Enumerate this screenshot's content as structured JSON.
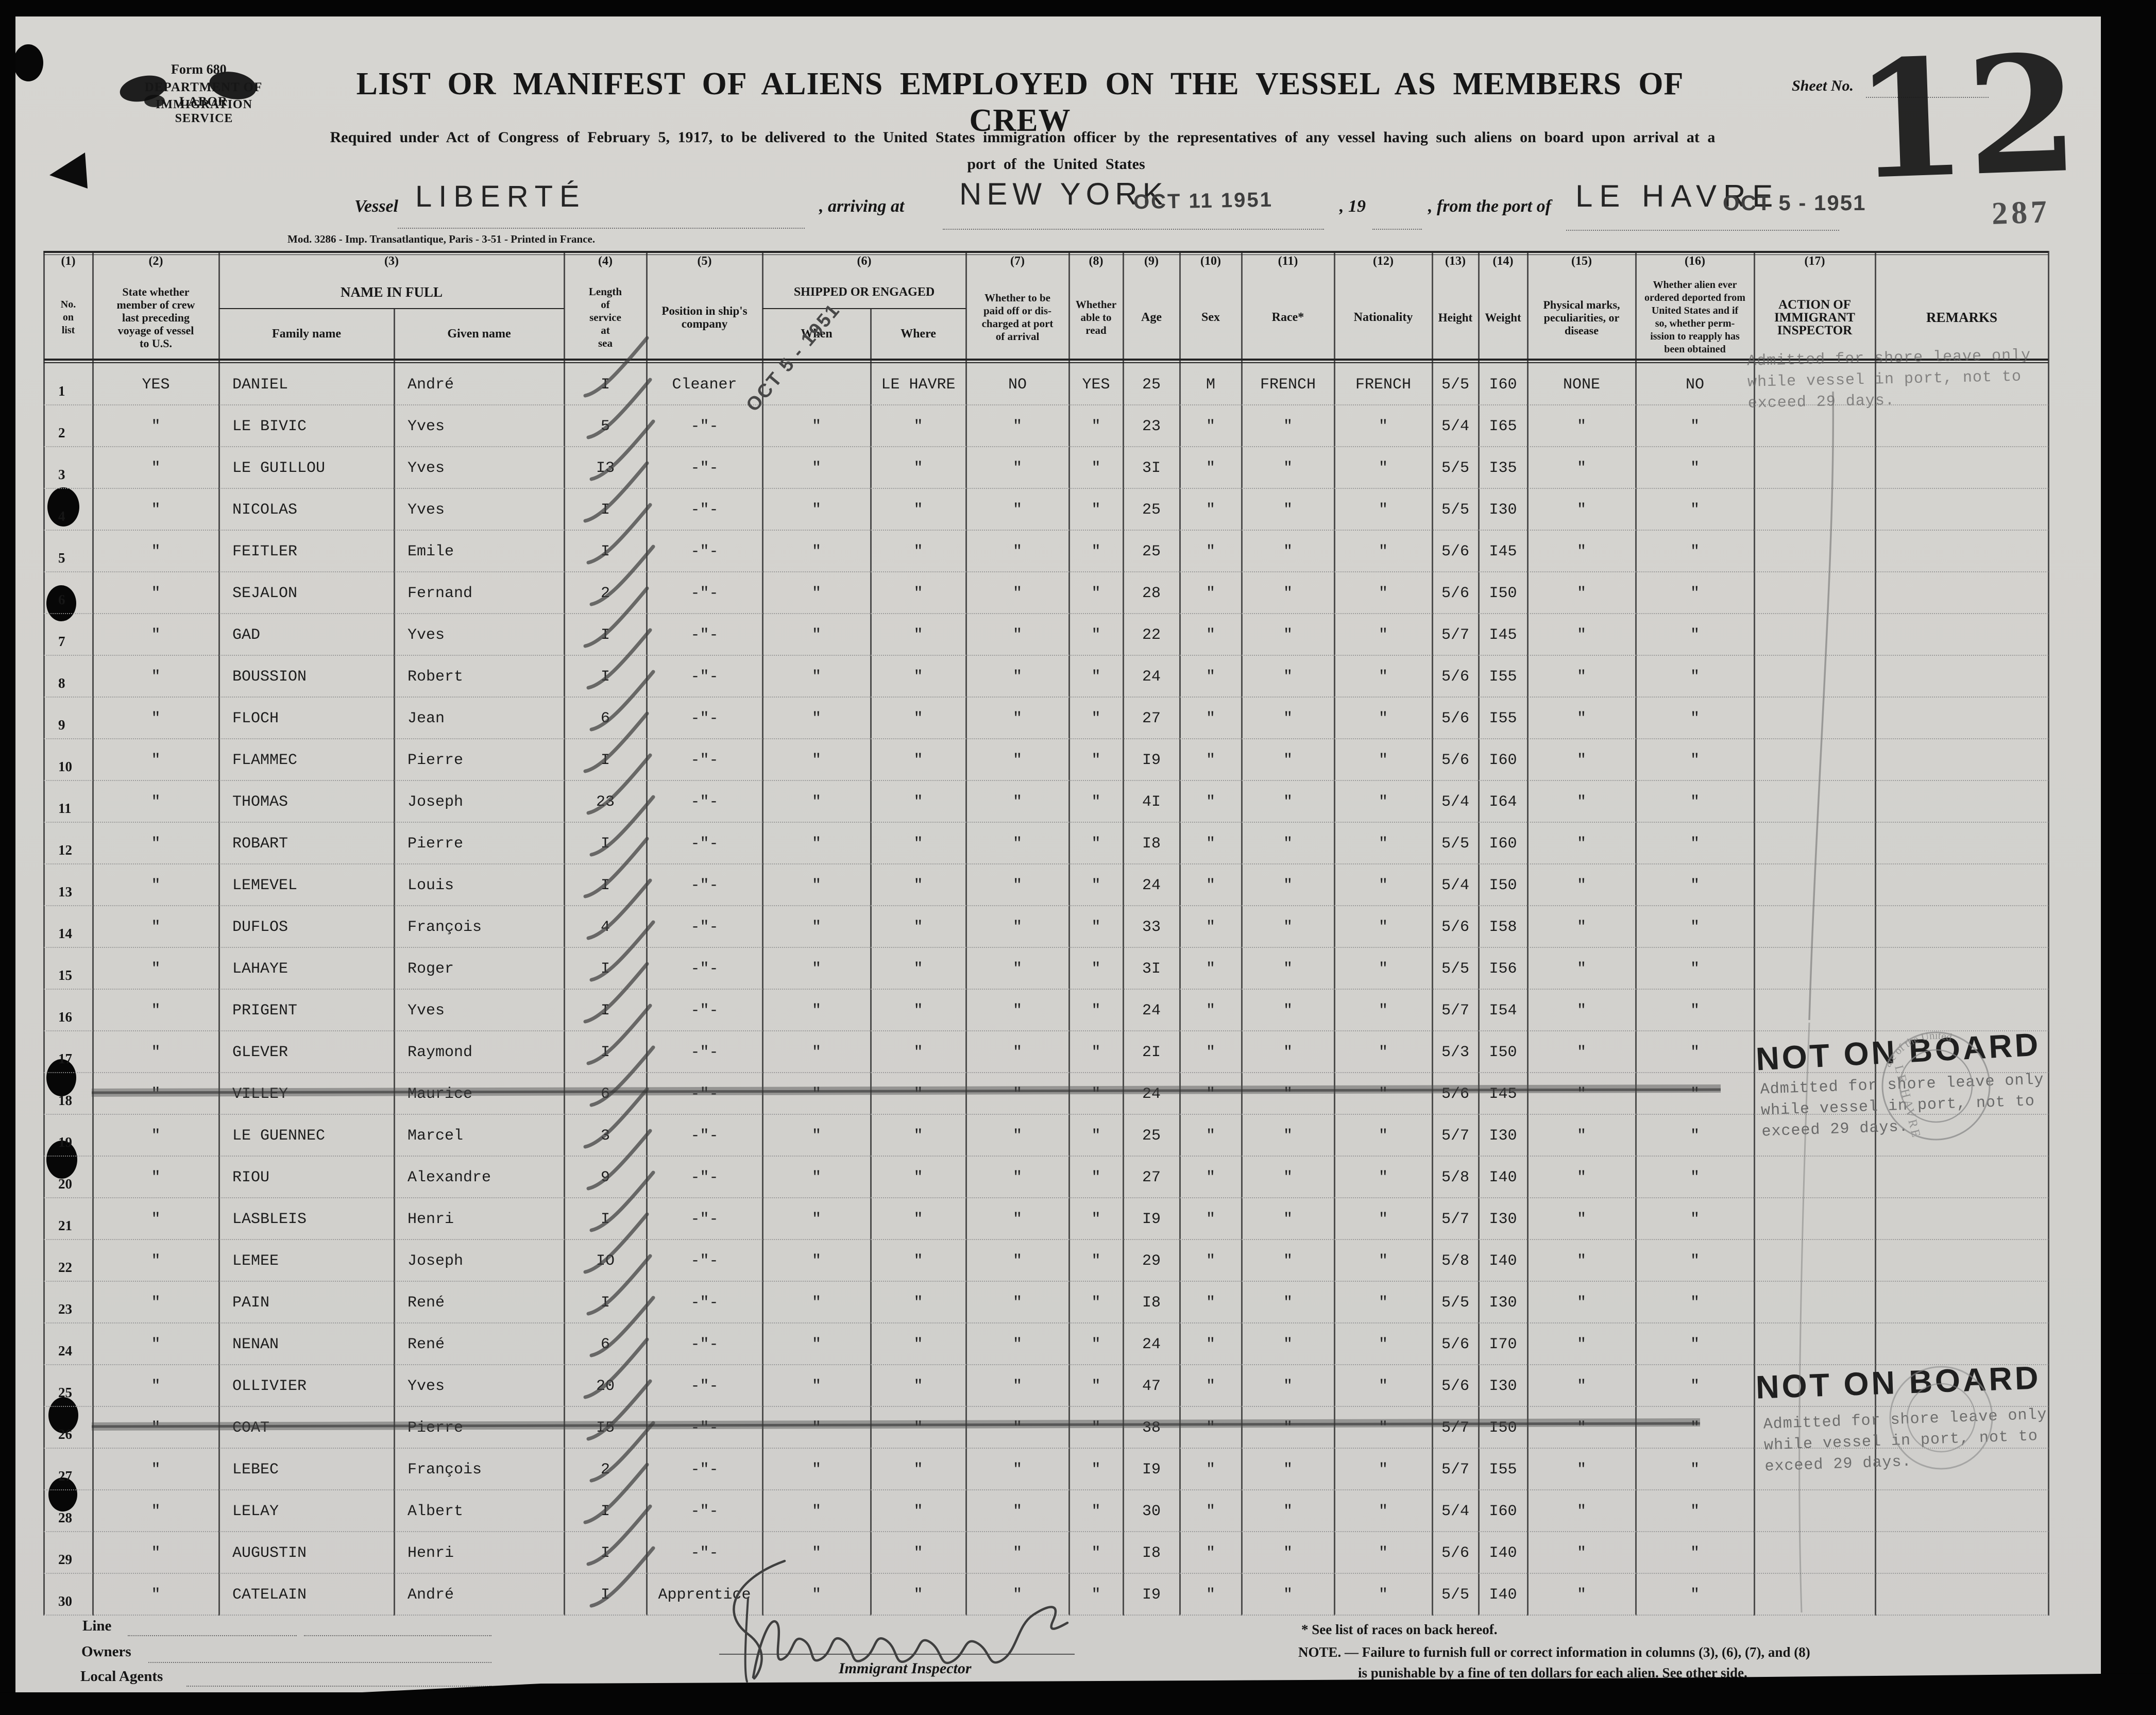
{
  "header": {
    "form_number": "Form 680",
    "agency_line1": "DEPARTMENT OF LABOR",
    "agency_line2": "IMMIGRATION SERVICE",
    "title": "LIST OR MANIFEST OF ALIENS EMPLOYED ON THE VESSEL AS MEMBERS OF CREW",
    "sheet_no_label": "Sheet No.",
    "subtitle_line1": "Required under Act of Congress of February 5, 1917, to be delivered to the United States immigration officer by the representatives of any vessel having such aliens on board upon arrival at a",
    "subtitle_line2": "port of the United States",
    "page_number": "12",
    "stamp_number": "287",
    "vessel_label": "Vessel",
    "vessel_name": "LIBERTÉ",
    "arriving_at_label": ", arriving at",
    "arrival_port": "NEW YORK",
    "arrival_date_stamp": "OCT 11 1951",
    "year_label": ", 19",
    "from_port_label": ", from the port of",
    "departure_port": "LE HAVRE",
    "departure_date_stamp": "OCT 5 - 1951",
    "when_column_stamp": "OCT 5 - 1951",
    "printer_note": "Mod. 3286 - Imp. Transatlantique, Paris - 3-51 - Printed in France."
  },
  "table": {
    "columns": [
      {
        "num": "(1)",
        "label": "No.\non\nlist"
      },
      {
        "num": "(2)",
        "label": "State whether\nmember of crew\nlast preceding\nvoyage of vessel\nto U.S."
      },
      {
        "num": "(3)",
        "label": "NAME IN FULL",
        "sub": [
          "Family name",
          "Given name"
        ]
      },
      {
        "num": "(4)",
        "label": "Length\nof\nservice\nat\nsea"
      },
      {
        "num": "(5)",
        "label": "Position in ship's\ncompany"
      },
      {
        "num": "(6)",
        "label": "SHIPPED OR ENGAGED",
        "sub": [
          "When",
          "Where"
        ]
      },
      {
        "num": "(7)",
        "label": "Whether to be\npaid off or dis-\ncharged at port\nof arrival"
      },
      {
        "num": "(8)",
        "label": "Whether\nable to\nread"
      },
      {
        "num": "(9)",
        "label": "Age"
      },
      {
        "num": "(10)",
        "label": "Sex"
      },
      {
        "num": "(11)",
        "label": "Race*"
      },
      {
        "num": "(12)",
        "label": "Nationality"
      },
      {
        "num": "(13)",
        "label": "Height"
      },
      {
        "num": "(14)",
        "label": "Weight"
      },
      {
        "num": "(15)",
        "label": "Physical marks,\npeculiarities, or\ndisease"
      },
      {
        "num": "(16)",
        "label": "Whether alien ever\nordered deported from\nUnited States and if\nso, whether perm-\nission to reapply has\nbeen obtained"
      },
      {
        "num": "(17)",
        "label": "ACTION OF\nIMMIGRANT\nINSPECTOR"
      },
      {
        "num": "",
        "label": "REMARKS"
      }
    ],
    "rows": [
      {
        "no": "1",
        "prev": "YES",
        "family": "DANIEL",
        "given": "André",
        "service": "I",
        "position": "Cleaner",
        "when": "",
        "where": "LE HAVRE",
        "paid": "NO",
        "read": "YES",
        "age": "25",
        "sex": "M",
        "race": "FRENCH",
        "nationality": "FRENCH",
        "height": "5/5",
        "weight": "I60",
        "marks": "NONE",
        "deported": "NO",
        "struck": false
      },
      {
        "no": "2",
        "prev": "\"",
        "family": "LE BIVIC",
        "given": "Yves",
        "service": "5",
        "position": "-\"-",
        "when": "\"",
        "where": "\"",
        "paid": "\"",
        "read": "\"",
        "age": "23",
        "sex": "\"",
        "race": "\"",
        "nationality": "\"",
        "height": "5/4",
        "weight": "I65",
        "marks": "\"",
        "deported": "\"",
        "struck": false
      },
      {
        "no": "3",
        "prev": "\"",
        "family": "LE GUILLOU",
        "given": "Yves",
        "service": "I3",
        "position": "-\"-",
        "when": "\"",
        "where": "\"",
        "paid": "\"",
        "read": "\"",
        "age": "3I",
        "sex": "\"",
        "race": "\"",
        "nationality": "\"",
        "height": "5/5",
        "weight": "I35",
        "marks": "\"",
        "deported": "\"",
        "struck": false
      },
      {
        "no": "4",
        "prev": "\"",
        "family": "NICOLAS",
        "given": "Yves",
        "service": "I",
        "position": "-\"-",
        "when": "\"",
        "where": "\"",
        "paid": "\"",
        "read": "\"",
        "age": "25",
        "sex": "\"",
        "race": "\"",
        "nationality": "\"",
        "height": "5/5",
        "weight": "I30",
        "marks": "\"",
        "deported": "\"",
        "struck": false
      },
      {
        "no": "5",
        "prev": "\"",
        "family": "FEITLER",
        "given": "Emile",
        "service": "I",
        "position": "-\"-",
        "when": "\"",
        "where": "\"",
        "paid": "\"",
        "read": "\"",
        "age": "25",
        "sex": "\"",
        "race": "\"",
        "nationality": "\"",
        "height": "5/6",
        "weight": "I45",
        "marks": "\"",
        "deported": "\"",
        "struck": false
      },
      {
        "no": "6",
        "prev": "\"",
        "family": "SEJALON",
        "given": "Fernand",
        "service": "2",
        "position": "-\"-",
        "when": "\"",
        "where": "\"",
        "paid": "\"",
        "read": "\"",
        "age": "28",
        "sex": "\"",
        "race": "\"",
        "nationality": "\"",
        "height": "5/6",
        "weight": "I50",
        "marks": "\"",
        "deported": "\"",
        "struck": false
      },
      {
        "no": "7",
        "prev": "\"",
        "family": "GAD",
        "given": "Yves",
        "service": "I",
        "position": "-\"-",
        "when": "\"",
        "where": "\"",
        "paid": "\"",
        "read": "\"",
        "age": "22",
        "sex": "\"",
        "race": "\"",
        "nationality": "\"",
        "height": "5/7",
        "weight": "I45",
        "marks": "\"",
        "deported": "\"",
        "struck": false
      },
      {
        "no": "8",
        "prev": "\"",
        "family": "BOUSSION",
        "given": "Robert",
        "service": "I",
        "position": "-\"-",
        "when": "\"",
        "where": "\"",
        "paid": "\"",
        "read": "\"",
        "age": "24",
        "sex": "\"",
        "race": "\"",
        "nationality": "\"",
        "height": "5/6",
        "weight": "I55",
        "marks": "\"",
        "deported": "\"",
        "struck": false
      },
      {
        "no": "9",
        "prev": "\"",
        "family": "FLOCH",
        "given": "Jean",
        "service": "6",
        "position": "-\"-",
        "when": "\"",
        "where": "\"",
        "paid": "\"",
        "read": "\"",
        "age": "27",
        "sex": "\"",
        "race": "\"",
        "nationality": "\"",
        "height": "5/6",
        "weight": "I55",
        "marks": "\"",
        "deported": "\"",
        "struck": false
      },
      {
        "no": "10",
        "prev": "\"",
        "family": "FLAMMEC",
        "given": "Pierre",
        "service": "I",
        "position": "-\"-",
        "when": "\"",
        "where": "\"",
        "paid": "\"",
        "read": "\"",
        "age": "I9",
        "sex": "\"",
        "race": "\"",
        "nationality": "\"",
        "height": "5/6",
        "weight": "I60",
        "marks": "\"",
        "deported": "\"",
        "struck": false
      },
      {
        "no": "11",
        "prev": "\"",
        "family": "THOMAS",
        "given": "Joseph",
        "service": "23",
        "position": "-\"-",
        "when": "\"",
        "where": "\"",
        "paid": "\"",
        "read": "\"",
        "age": "4I",
        "sex": "\"",
        "race": "\"",
        "nationality": "\"",
        "height": "5/4",
        "weight": "I64",
        "marks": "\"",
        "deported": "\"",
        "struck": false
      },
      {
        "no": "12",
        "prev": "\"",
        "family": "ROBART",
        "given": "Pierre",
        "service": "I",
        "position": "-\"-",
        "when": "\"",
        "where": "\"",
        "paid": "\"",
        "read": "\"",
        "age": "I8",
        "sex": "\"",
        "race": "\"",
        "nationality": "\"",
        "height": "5/5",
        "weight": "I60",
        "marks": "\"",
        "deported": "\"",
        "struck": false
      },
      {
        "no": "13",
        "prev": "\"",
        "family": "LEMEVEL",
        "given": "Louis",
        "service": "I",
        "position": "-\"-",
        "when": "\"",
        "where": "\"",
        "paid": "\"",
        "read": "\"",
        "age": "24",
        "sex": "\"",
        "race": "\"",
        "nationality": "\"",
        "height": "5/4",
        "weight": "I50",
        "marks": "\"",
        "deported": "\"",
        "struck": false
      },
      {
        "no": "14",
        "prev": "\"",
        "family": "DUFLOS",
        "given": "François",
        "service": "4",
        "position": "-\"-",
        "when": "\"",
        "where": "\"",
        "paid": "\"",
        "read": "\"",
        "age": "33",
        "sex": "\"",
        "race": "\"",
        "nationality": "\"",
        "height": "5/6",
        "weight": "I58",
        "marks": "\"",
        "deported": "\"",
        "struck": false
      },
      {
        "no": "15",
        "prev": "\"",
        "family": "LAHAYE",
        "given": "Roger",
        "service": "I",
        "position": "-\"-",
        "when": "\"",
        "where": "\"",
        "paid": "\"",
        "read": "\"",
        "age": "3I",
        "sex": "\"",
        "race": "\"",
        "nationality": "\"",
        "height": "5/5",
        "weight": "I56",
        "marks": "\"",
        "deported": "\"",
        "struck": false
      },
      {
        "no": "16",
        "prev": "\"",
        "family": "PRIGENT",
        "given": "Yves",
        "service": "I",
        "position": "-\"-",
        "when": "\"",
        "where": "\"",
        "paid": "\"",
        "read": "\"",
        "age": "24",
        "sex": "\"",
        "race": "\"",
        "nationality": "\"",
        "height": "5/7",
        "weight": "I54",
        "marks": "\"",
        "deported": "\"",
        "struck": false
      },
      {
        "no": "17",
        "prev": "\"",
        "family": "GLEVER",
        "given": "Raymond",
        "service": "I",
        "position": "-\"-",
        "when": "\"",
        "where": "\"",
        "paid": "\"",
        "read": "\"",
        "age": "2I",
        "sex": "\"",
        "race": "\"",
        "nationality": "\"",
        "height": "5/3",
        "weight": "I50",
        "marks": "\"",
        "deported": "\"",
        "struck": false
      },
      {
        "no": "18",
        "prev": "\"",
        "family": "VILLEY",
        "given": "Maurice",
        "service": "6",
        "position": "-\"-",
        "when": "\"",
        "where": "\"",
        "paid": "\"",
        "read": "\"",
        "age": "24",
        "sex": "\"",
        "race": "\"",
        "nationality": "\"",
        "height": "5/6",
        "weight": "I45",
        "marks": "\"",
        "deported": "\"",
        "struck": true
      },
      {
        "no": "19",
        "prev": "\"",
        "family": "LE GUENNEC",
        "given": "Marcel",
        "service": "3",
        "position": "-\"-",
        "when": "\"",
        "where": "\"",
        "paid": "\"",
        "read": "\"",
        "age": "25",
        "sex": "\"",
        "race": "\"",
        "nationality": "\"",
        "height": "5/7",
        "weight": "I30",
        "marks": "\"",
        "deported": "\"",
        "struck": false
      },
      {
        "no": "20",
        "prev": "\"",
        "family": "RIOU",
        "given": "Alexandre",
        "service": "9",
        "position": "-\"-",
        "when": "\"",
        "where": "\"",
        "paid": "\"",
        "read": "\"",
        "age": "27",
        "sex": "\"",
        "race": "\"",
        "nationality": "\"",
        "height": "5/8",
        "weight": "I40",
        "marks": "\"",
        "deported": "\"",
        "struck": false
      },
      {
        "no": "21",
        "prev": "\"",
        "family": "LASBLEIS",
        "given": "Henri",
        "service": "I",
        "position": "-\"-",
        "when": "\"",
        "where": "\"",
        "paid": "\"",
        "read": "\"",
        "age": "I9",
        "sex": "\"",
        "race": "\"",
        "nationality": "\"",
        "height": "5/7",
        "weight": "I30",
        "marks": "\"",
        "deported": "\"",
        "struck": false
      },
      {
        "no": "22",
        "prev": "\"",
        "family": "LEMEE",
        "given": "Joseph",
        "service": "IO",
        "position": "-\"-",
        "when": "\"",
        "where": "\"",
        "paid": "\"",
        "read": "\"",
        "age": "29",
        "sex": "\"",
        "race": "\"",
        "nationality": "\"",
        "height": "5/8",
        "weight": "I40",
        "marks": "\"",
        "deported": "\"",
        "struck": false
      },
      {
        "no": "23",
        "prev": "\"",
        "family": "PAIN",
        "given": "René",
        "service": "I",
        "position": "-\"-",
        "when": "\"",
        "where": "\"",
        "paid": "\"",
        "read": "\"",
        "age": "I8",
        "sex": "\"",
        "race": "\"",
        "nationality": "\"",
        "height": "5/5",
        "weight": "I30",
        "marks": "\"",
        "deported": "\"",
        "struck": false
      },
      {
        "no": "24",
        "prev": "\"",
        "family": "NENAN",
        "given": "René",
        "service": "6",
        "position": "-\"-",
        "when": "\"",
        "where": "\"",
        "paid": "\"",
        "read": "\"",
        "age": "24",
        "sex": "\"",
        "race": "\"",
        "nationality": "\"",
        "height": "5/6",
        "weight": "I70",
        "marks": "\"",
        "deported": "\"",
        "struck": false
      },
      {
        "no": "25",
        "prev": "\"",
        "family": "OLLIVIER",
        "given": "Yves",
        "service": "20",
        "position": "-\"-",
        "when": "\"",
        "where": "\"",
        "paid": "\"",
        "read": "\"",
        "age": "47",
        "sex": "\"",
        "race": "\"",
        "nationality": "\"",
        "height": "5/6",
        "weight": "I30",
        "marks": "\"",
        "deported": "\"",
        "struck": false
      },
      {
        "no": "26",
        "prev": "\"",
        "family": "COAT",
        "given": "Pierre",
        "service": "I5",
        "position": "-\"-",
        "when": "\"",
        "where": "\"",
        "paid": "\"",
        "read": "\"",
        "age": "38",
        "sex": "\"",
        "race": "\"",
        "nationality": "\"",
        "height": "5/7",
        "weight": "I50",
        "marks": "\"",
        "deported": "\"",
        "struck": true
      },
      {
        "no": "27",
        "prev": "\"",
        "family": "LEBEC",
        "given": "François",
        "service": "2",
        "position": "-\"-",
        "when": "\"",
        "where": "\"",
        "paid": "\"",
        "read": "\"",
        "age": "I9",
        "sex": "\"",
        "race": "\"",
        "nationality": "\"",
        "height": "5/7",
        "weight": "I55",
        "marks": "\"",
        "deported": "\"",
        "struck": false
      },
      {
        "no": "28",
        "prev": "\"",
        "family": "LELAY",
        "given": "Albert",
        "service": "I",
        "position": "-\"-",
        "when": "\"",
        "where": "\"",
        "paid": "\"",
        "read": "\"",
        "age": "30",
        "sex": "\"",
        "race": "\"",
        "nationality": "\"",
        "height": "5/4",
        "weight": "I60",
        "marks": "\"",
        "deported": "\"",
        "struck": false
      },
      {
        "no": "29",
        "prev": "\"",
        "family": "AUGUSTIN",
        "given": "Henri",
        "service": "I",
        "position": "-\"-",
        "when": "\"",
        "where": "\"",
        "paid": "\"",
        "read": "\"",
        "age": "I8",
        "sex": "\"",
        "race": "\"",
        "nationality": "\"",
        "height": "5/6",
        "weight": "I40",
        "marks": "\"",
        "deported": "\"",
        "struck": false
      },
      {
        "no": "30",
        "prev": "\"",
        "family": "CATELAIN",
        "given": "André",
        "service": "I",
        "position": "Apprentice",
        "when": "\"",
        "where": "\"",
        "paid": "\"",
        "read": "\"",
        "age": "I9",
        "sex": "\"",
        "race": "\"",
        "nationality": "\"",
        "height": "5/5",
        "weight": "I40",
        "marks": "\"",
        "deported": "\"",
        "struck": false
      }
    ]
  },
  "stamps": {
    "not_on_board": "NOT ON BOARD",
    "admitted_lines": [
      "Admitted for shore leave only",
      "while vessel in port, not to",
      "exceed 29 days."
    ],
    "consular_arc_top": "ate of the United",
    "consular_arc_bottom": "LE HAVRE"
  },
  "footer": {
    "line_label": "Line",
    "owners_label": "Owners",
    "local_agents_label": "Local Agents",
    "inspector_label": "Immigrant Inspector",
    "races_note": "* See list of races on back hereof.",
    "note_line1": "NOTE. — Failure to furnish full or correct information in columns (3), (6), (7), and (8)",
    "note_line2": "is punishable by a fine of ten dollars for each alien. See other side."
  }
}
